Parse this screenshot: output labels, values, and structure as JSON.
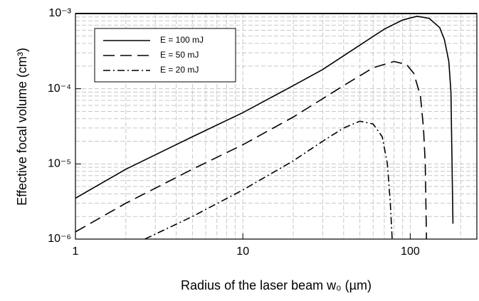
{
  "chart_data": {
    "type": "line",
    "xscale": "log",
    "yscale": "log",
    "grid": true,
    "legend": "upper left",
    "xlabel": "Radius of the laser beam w₀ (µm)",
    "ylabel": "Effective focal volume (cm³)",
    "xlim": [
      1,
      250
    ],
    "ylim": [
      1e-06,
      0.001
    ],
    "xticks": [
      1,
      10,
      100
    ],
    "yticks": [
      {
        "value": 1e-06,
        "label": "10⁻⁶"
      },
      {
        "value": 1e-05,
        "label": "10⁻⁵"
      },
      {
        "value": 0.0001,
        "label": "10⁻⁴"
      },
      {
        "value": 0.001,
        "label": "10⁻³"
      }
    ],
    "series": [
      {
        "name": "E = 100 mJ",
        "color": "#000000",
        "dash": "solid",
        "x": [
          1,
          2,
          5,
          10,
          20,
          30,
          50,
          70,
          90,
          110,
          130,
          150,
          160,
          170,
          175,
          180
        ],
        "values": [
          3.5e-06,
          8.5e-06,
          2.3e-05,
          4.8e-05,
          0.00011,
          0.00018,
          0.00038,
          0.00062,
          0.00082,
          0.00092,
          0.00086,
          0.00065,
          0.00045,
          0.00023,
          9e-05,
          1.6e-06
        ]
      },
      {
        "name": "E = 50 mJ",
        "color": "#000000",
        "dash": "dashed",
        "x": [
          1,
          2,
          5,
          10,
          20,
          40,
          60,
          80,
          95,
          105,
          115,
          120,
          123,
          125
        ],
        "values": [
          1.25e-06,
          3e-06,
          8.5e-06,
          1.8e-05,
          4.2e-05,
          0.00011,
          0.00019,
          0.00023,
          0.00021,
          0.00016,
          8e-05,
          3e-05,
          1e-05,
          1e-06
        ]
      },
      {
        "name": "E = 20 mJ",
        "color": "#000000",
        "dash": "dashdot",
        "x": [
          2.6,
          5,
          10,
          20,
          30,
          40,
          50,
          60,
          68,
          73,
          76,
          78
        ],
        "values": [
          1e-06,
          2e-06,
          4.5e-06,
          1.1e-05,
          2e-05,
          3e-05,
          3.7e-05,
          3.4e-05,
          2.3e-05,
          1e-05,
          3e-06,
          1e-06
        ]
      }
    ]
  }
}
